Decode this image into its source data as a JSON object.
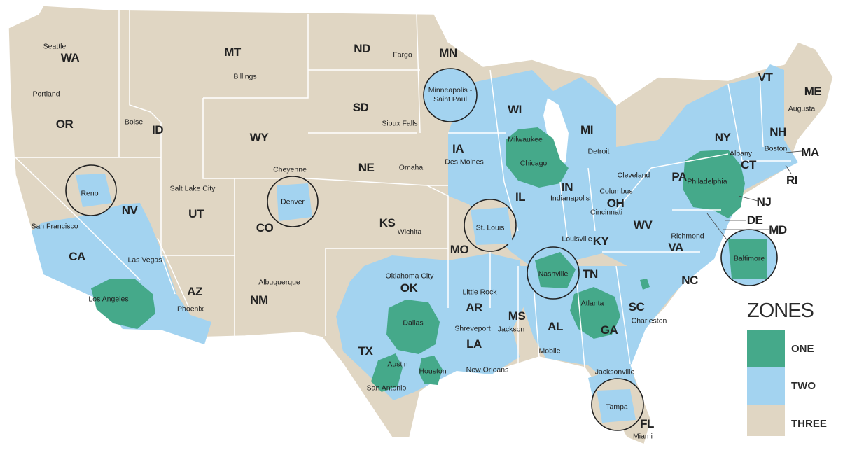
{
  "colors": {
    "zone_one": "#45a98a",
    "zone_two": "#a3d3f0",
    "zone_three": "#e0d6c3",
    "border": "#ffffff"
  },
  "legend": {
    "title": "ZONES",
    "items": [
      {
        "label": "ONE",
        "color": "#45a98a"
      },
      {
        "label": "TWO",
        "color": "#a3d3f0"
      },
      {
        "label": "THREE",
        "color": "#e0d6c3"
      }
    ]
  },
  "states": [
    "WA",
    "OR",
    "CA",
    "NV",
    "ID",
    "MT",
    "WY",
    "UT",
    "CO",
    "AZ",
    "NM",
    "ND",
    "SD",
    "NE",
    "KS",
    "OK",
    "TX",
    "MN",
    "IA",
    "MO",
    "AR",
    "LA",
    "WI",
    "IL",
    "MI",
    "IN",
    "OH",
    "KY",
    "TN",
    "MS",
    "AL",
    "GA",
    "SC",
    "NC",
    "VA",
    "WV",
    "PA",
    "NY",
    "VT",
    "NH",
    "ME",
    "MA",
    "CT",
    "RI",
    "NJ",
    "DE",
    "MD",
    "FL"
  ],
  "cities": [
    "Seattle",
    "Portland",
    "Boise",
    "Billings",
    "Salt Lake City",
    "Cheyenne",
    "Fargo",
    "Sioux Falls",
    "Omaha",
    "Des Moines",
    "Wichita",
    "Oklahoma City",
    "Little Rock",
    "Shreveport",
    "New Orleans",
    "Jackson",
    "San Francisco",
    "Las Vegas",
    "Los Angeles",
    "Phoenix",
    "Albuquerque",
    "Austin",
    "San Antonio",
    "Houston",
    "Dallas",
    "Milwaukee",
    "Chicago",
    "Detroit",
    "Indianapolis",
    "Columbus",
    "Cincinnati",
    "Cleveland",
    "Louisville",
    "Nashville",
    "Atlanta",
    "Charleston",
    "Mobile",
    "Jacksonville",
    "Tampa",
    "Miami",
    "Richmond",
    "Philadelphia",
    "Baltimore",
    "Boston",
    "Albany",
    "Augusta",
    "Minneapolis - Saint Paul",
    "Reno",
    "Denver",
    "St. Louis"
  ]
}
